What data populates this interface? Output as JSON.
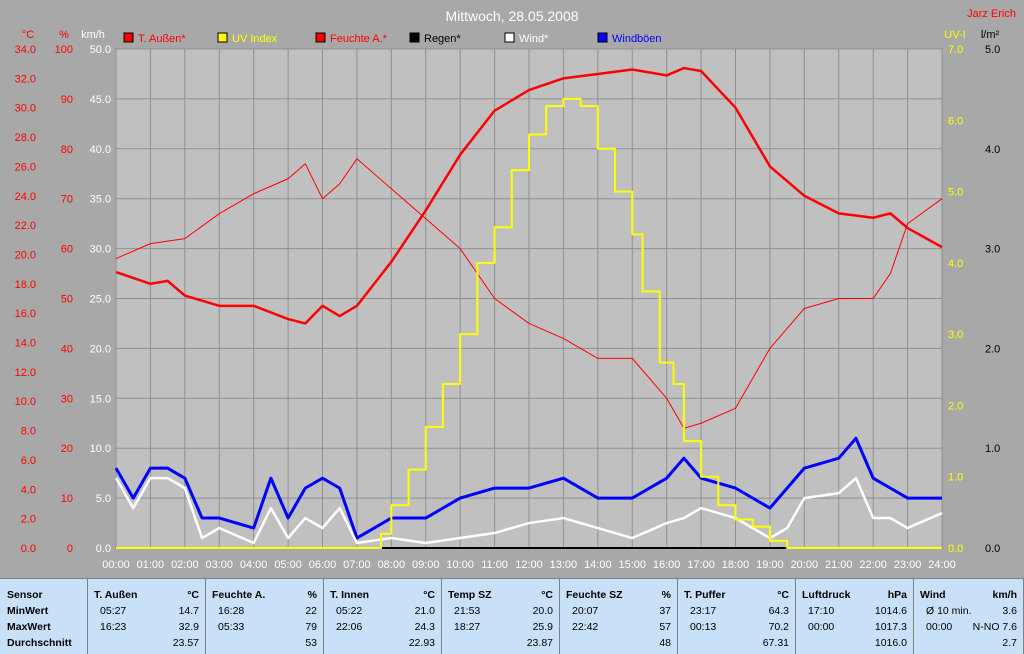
{
  "title": "Mittwoch, 28.05.2008",
  "author": "Jarz Erich",
  "legend": [
    {
      "label": "T. Außen*",
      "color": "#ff0000"
    },
    {
      "label": "UV Index",
      "color": "#ffff00"
    },
    {
      "label": "Feuchte A.*",
      "color": "#ff0000"
    },
    {
      "label": "Regen*",
      "color": "#000000"
    },
    {
      "label": "Wind*",
      "color": "#ffffff"
    },
    {
      "label": "Windböen",
      "color": "#0000ff"
    }
  ],
  "axes": {
    "temp_unit": "°C",
    "hum_unit": "%",
    "wind_unit": "km/h",
    "uv_unit": "UV-I",
    "rain_unit": "l/m²",
    "temp_ticks": [
      "0.0",
      "2.0",
      "4.0",
      "6.0",
      "8.0",
      "10.0",
      "12.0",
      "14.0",
      "16.0",
      "18.0",
      "20.0",
      "22.0",
      "24.0",
      "26.0",
      "28.0",
      "30.0",
      "32.0",
      "34.0"
    ],
    "hum_ticks": [
      "0",
      "10",
      "20",
      "30",
      "40",
      "50",
      "60",
      "70",
      "80",
      "90",
      "100"
    ],
    "wind_ticks": [
      "0.0",
      "5.0",
      "10.0",
      "15.0",
      "20.0",
      "25.0",
      "30.0",
      "35.0",
      "40.0",
      "45.0",
      "50.0"
    ],
    "uv_ticks": [
      "0.0",
      "1.0",
      "2.0",
      "3.0",
      "4.0",
      "5.0",
      "6.0",
      "7.0"
    ],
    "rain_ticks": [
      "0.0",
      "1.0",
      "2.0",
      "3.0",
      "4.0",
      "5.0"
    ],
    "x_ticks": [
      "00:00",
      "01:00",
      "02:00",
      "03:00",
      "04:00",
      "05:00",
      "06:00",
      "07:00",
      "08:00",
      "09:00",
      "10:00",
      "11:00",
      "12:00",
      "13:00",
      "14:00",
      "15:00",
      "16:00",
      "17:00",
      "18:00",
      "19:00",
      "20:00",
      "21:00",
      "22:00",
      "23:00",
      "24:00"
    ]
  },
  "chart_data": {
    "type": "line",
    "x_unit": "hour",
    "xlim": [
      0,
      24
    ],
    "series": [
      {
        "name": "T. Außen*",
        "axis": "°C",
        "ylim": [
          0,
          34
        ],
        "x": [
          0,
          1,
          1.5,
          2,
          3,
          4,
          5,
          5.5,
          6,
          6.5,
          7,
          8,
          9,
          10,
          11,
          12,
          13,
          14,
          15,
          16,
          16.5,
          17,
          18,
          19,
          20,
          21,
          22,
          22.5,
          23,
          24
        ],
        "y": [
          18.8,
          18.0,
          18.2,
          17.2,
          16.5,
          16.5,
          15.6,
          15.3,
          16.5,
          15.8,
          16.5,
          19.5,
          23.0,
          26.8,
          29.8,
          31.2,
          32.0,
          32.3,
          32.6,
          32.2,
          32.7,
          32.5,
          30.0,
          26.0,
          24.0,
          22.8,
          22.5,
          22.8,
          21.8,
          20.5
        ]
      },
      {
        "name": "Feuchte A.*",
        "axis": "%",
        "ylim": [
          0,
          100
        ],
        "x": [
          0,
          1,
          2,
          3,
          4,
          5,
          5.5,
          6,
          6.5,
          7,
          8,
          9,
          10,
          11,
          12,
          13,
          14,
          15,
          16,
          16.5,
          17,
          18,
          19,
          20,
          21,
          22,
          22.5,
          23,
          24
        ],
        "y": [
          58,
          61,
          62,
          67,
          71,
          74,
          77,
          70,
          73,
          78,
          72,
          66,
          60,
          50,
          45,
          42,
          38,
          38,
          30,
          24,
          25,
          28,
          40,
          48,
          50,
          50,
          55,
          65,
          70
        ]
      },
      {
        "name": "UV Index",
        "axis": "UV-I",
        "ylim": [
          0,
          7
        ],
        "x": [
          0,
          7.3,
          7.7,
          8,
          8.5,
          9,
          9.5,
          10,
          10.5,
          11,
          11.5,
          12,
          12.5,
          13,
          13.5,
          14,
          14.5,
          15,
          15.3,
          15.8,
          16.2,
          16.5,
          17,
          17.5,
          18,
          18.5,
          19,
          19.5,
          24
        ],
        "y": [
          0,
          0,
          0.2,
          0.6,
          1.1,
          1.7,
          2.3,
          3.0,
          4.0,
          4.5,
          5.3,
          5.8,
          6.2,
          6.3,
          6.2,
          5.6,
          5.0,
          4.4,
          3.6,
          2.6,
          2.3,
          1.5,
          1.0,
          0.6,
          0.4,
          0.3,
          0.1,
          0,
          0
        ]
      },
      {
        "name": "Wind*",
        "axis": "km/h",
        "ylim": [
          0,
          50
        ],
        "x": [
          0,
          0.5,
          1,
          1.5,
          2,
          2.5,
          3,
          4,
          4.5,
          5,
          5.5,
          6,
          6.5,
          7,
          8,
          9,
          10,
          11,
          12,
          13,
          14,
          15,
          16,
          16.5,
          17,
          18,
          19,
          19.5,
          20,
          21,
          21.5,
          22,
          22.5,
          23,
          24
        ],
        "y": [
          7,
          4,
          7,
          7,
          6,
          1,
          2,
          0.5,
          4,
          1,
          3,
          2,
          4,
          0.5,
          1,
          0.5,
          1,
          1.5,
          2.5,
          3,
          2,
          1,
          2.5,
          3,
          4,
          3,
          1,
          2,
          5,
          5.5,
          7,
          3,
          3,
          2,
          3.5
        ]
      },
      {
        "name": "Windböen",
        "axis": "km/h",
        "ylim": [
          0,
          50
        ],
        "x": [
          0,
          0.5,
          1,
          1.5,
          2,
          2.5,
          3,
          4,
          4.5,
          5,
          5.5,
          6,
          6.5,
          7,
          8,
          9,
          10,
          11,
          12,
          13,
          14,
          15,
          16,
          16.5,
          17,
          18,
          19,
          19.5,
          20,
          21,
          21.5,
          22,
          22.5,
          23,
          24
        ],
        "y": [
          8,
          5,
          8,
          8,
          7,
          3,
          3,
          2,
          7,
          3,
          6,
          7,
          6,
          1,
          3,
          3,
          5,
          6,
          6,
          7,
          5,
          5,
          7,
          9,
          7,
          6,
          4,
          6,
          8,
          9,
          11,
          7,
          6,
          5,
          5
        ]
      },
      {
        "name": "Regen*",
        "axis": "l/m²",
        "ylim": [
          0,
          5
        ],
        "x": [
          0,
          24
        ],
        "y": [
          0,
          0
        ]
      }
    ]
  },
  "stats": {
    "sensor_label": "Sensor",
    "row_labels": [
      "MinWert",
      "MaxWert",
      "Durchschnitt"
    ],
    "columns": [
      {
        "name": "T. Außen",
        "unit": "°C",
        "min_time": "05:27",
        "min": "14.7",
        "max_time": "16:23",
        "max": "32.9",
        "avg": "23.57"
      },
      {
        "name": "Feuchte A.",
        "unit": "%",
        "min_time": "16:28",
        "min": "22",
        "max_time": "05:33",
        "max": "79",
        "avg": "53"
      },
      {
        "name": "T. Innen",
        "unit": "°C",
        "min_time": "05:22",
        "min": "21.0",
        "max_time": "22:06",
        "max": "24.3",
        "avg": "22.93"
      },
      {
        "name": "Temp SZ",
        "unit": "°C",
        "min_time": "21:53",
        "min": "20.0",
        "max_time": "18:27",
        "max": "25.9",
        "avg": "23.87"
      },
      {
        "name": "Feuchte SZ",
        "unit": "%",
        "min_time": "20:07",
        "min": "37",
        "max_time": "22:42",
        "max": "57",
        "avg": "48"
      },
      {
        "name": "T. Puffer",
        "unit": "°C",
        "min_time": "23:17",
        "min": "64.3",
        "max_time": "00:13",
        "max": "70.2",
        "avg": "67.31"
      },
      {
        "name": "Luftdruck",
        "unit": "hPa",
        "min_time": "17:10",
        "min": "1014.6",
        "max_time": "00:00",
        "max": "1017.3",
        "avg": "1016.0"
      },
      {
        "name": "Wind",
        "unit": "km/h",
        "min_time": "Ø 10 min.",
        "min": "3.6",
        "max_time": "00:00",
        "max": "N-NO 7.6",
        "avg": "2.7"
      }
    ]
  }
}
